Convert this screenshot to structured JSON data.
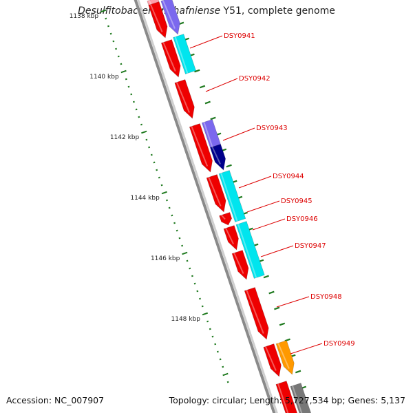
{
  "header": {
    "species": "Desulfitobacterium hafniense",
    "title_rest": " Y51, complete genome"
  },
  "footer": {
    "accession": "Accession: NC_007907",
    "summary": "Topology: circular; Length: 5,727,534 bp; Genes: 5,137"
  },
  "colors": {
    "backbone": "#8a8a8a",
    "tick": "#1f7a1f",
    "label": "#dd0000",
    "red_gene": "#ee0000",
    "pink_gene": "#ff9fa8",
    "purple_gene": "#7b68ee",
    "navy_gene": "#00008b",
    "cyan_gene": "#00e5ee",
    "orange_gene": "#ff9900",
    "gray_gene": "#777777"
  },
  "scale_labels": [
    "1138 kbp",
    "1140 kbp",
    "1142 kbp",
    "1144 kbp",
    "1146 kbp",
    "1148 kbp"
  ],
  "gene_labels": [
    "DSY0941",
    "DSY0942",
    "DSY0943",
    "DSY0944",
    "DSY0945",
    "DSY0946",
    "DSY0947",
    "DSY0948",
    "DSY0949"
  ],
  "genes": [
    {
      "lane": 1,
      "start": -1,
      "end": 45,
      "color": "pink_gene",
      "arrow": true
    },
    {
      "lane": 1,
      "start": 5,
      "end": 55,
      "color": "red_gene",
      "arrow": true
    },
    {
      "lane": 2,
      "start": -1,
      "end": 50,
      "color": "purple_gene",
      "arrow": true
    },
    {
      "lane": 2,
      "start": 52,
      "end": 105,
      "color": "cyan_gene",
      "arrow": false
    },
    {
      "lane": 1,
      "start": 60,
      "end": 112,
      "color": "red_gene",
      "arrow": true
    },
    {
      "lane": 1,
      "start": 118,
      "end": 172,
      "color": "red_gene",
      "arrow": true
    },
    {
      "lane": 2,
      "start": 176,
      "end": 212,
      "color": "purple_gene",
      "arrow": false
    },
    {
      "lane": 2,
      "start": 212,
      "end": 247,
      "color": "navy_gene",
      "arrow": true
    },
    {
      "lane": 1,
      "start": 182,
      "end": 250,
      "color": "red_gene",
      "arrow": true
    },
    {
      "lane": 1,
      "start": 256,
      "end": 308,
      "color": "red_gene",
      "arrow": true
    },
    {
      "lane": 2,
      "start": 250,
      "end": 320,
      "color": "cyan_gene",
      "arrow": false
    },
    {
      "lane": 1,
      "start": 311,
      "end": 327,
      "color": "red_gene",
      "arrow": true
    },
    {
      "lane": 1,
      "start": 330,
      "end": 363,
      "color": "red_gene",
      "arrow": true
    },
    {
      "lane": 2,
      "start": 324,
      "end": 402,
      "color": "cyan_gene",
      "arrow": false
    },
    {
      "lane": 1,
      "start": 366,
      "end": 406,
      "color": "red_gene",
      "arrow": true
    },
    {
      "lane": 1,
      "start": 420,
      "end": 493,
      "color": "red_gene",
      "arrow": true
    },
    {
      "lane": 2,
      "start": 497,
      "end": 544,
      "color": "orange_gene",
      "arrow": true
    },
    {
      "lane": 1,
      "start": 502,
      "end": 547,
      "color": "red_gene",
      "arrow": true
    },
    {
      "lane": 1,
      "start": 556,
      "end": 610,
      "color": "red_gene",
      "arrow": false
    },
    {
      "lane": 2,
      "start": 559,
      "end": 610,
      "color": "gray_gene",
      "arrow": false
    }
  ]
}
